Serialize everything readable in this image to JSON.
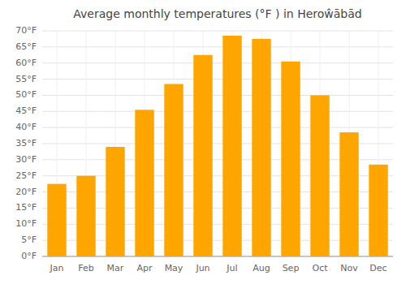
{
  "chart_data": {
    "type": "bar",
    "title": "Average monthly temperatures (°F ) in Heroŵābād",
    "categories": [
      "Jan",
      "Feb",
      "Mar",
      "Apr",
      "May",
      "Jun",
      "Jul",
      "Aug",
      "Sep",
      "Oct",
      "Nov",
      "Dec"
    ],
    "values": [
      22.5,
      25.0,
      34.0,
      45.5,
      53.5,
      62.5,
      68.5,
      67.5,
      60.5,
      50.0,
      38.5,
      28.5
    ],
    "color": "#FFA500",
    "ylim": [
      0,
      70
    ],
    "yticks": [
      {
        "value": 0,
        "label": "0°F"
      },
      {
        "value": 5,
        "label": "5°F"
      },
      {
        "value": 10,
        "label": "10°F"
      },
      {
        "value": 15,
        "label": "15°F"
      },
      {
        "value": 20,
        "label": "20°F"
      },
      {
        "value": 25,
        "label": "25°F"
      },
      {
        "value": 30,
        "label": "30°F"
      },
      {
        "value": 35,
        "label": "35°F"
      },
      {
        "value": 40,
        "label": "40°F"
      },
      {
        "value": 45,
        "label": "45°F"
      },
      {
        "value": 50,
        "label": "50°F"
      },
      {
        "value": 55,
        "label": "55°F"
      },
      {
        "value": 60,
        "label": "60°F"
      },
      {
        "value": 65,
        "label": "65°F"
      },
      {
        "value": 70,
        "label": "70°F"
      }
    ],
    "grid": true
  }
}
